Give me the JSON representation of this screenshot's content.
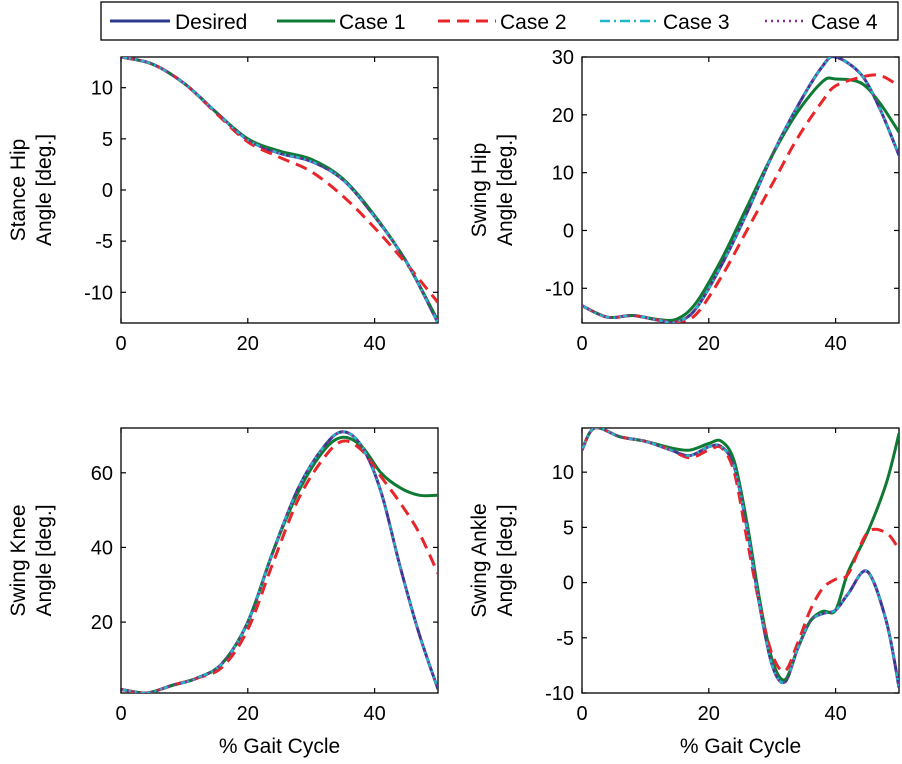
{
  "legend": {
    "entries": [
      {
        "name": "Desired",
        "color": "#2b3a8f",
        "dash": "solid",
        "width": 3
      },
      {
        "name": "Case 1",
        "color": "#0e7a33",
        "dash": "solid",
        "width": 3
      },
      {
        "name": "Case 2",
        "color": "#e8262a",
        "dash": "12 7",
        "width": 3
      },
      {
        "name": "Case 3",
        "color": "#20b7c9",
        "dash": "10 4 2 4",
        "width": 2.5
      },
      {
        "name": "Case 4",
        "color": "#8a2b9a",
        "dash": "2 4",
        "width": 2.5
      }
    ]
  },
  "chart_data": [
    {
      "type": "line",
      "id": "stance-hip",
      "ylabel": [
        "Stance Hip",
        "Angle [deg.]"
      ],
      "xlabel": "",
      "xlim": [
        0,
        50
      ],
      "ylim": [
        -13,
        13
      ],
      "xticks": [
        0,
        20,
        40
      ],
      "yticks": [
        -10,
        -5,
        0,
        5,
        10
      ],
      "x": [
        0,
        5,
        10,
        15,
        20,
        25,
        30,
        35,
        40,
        45,
        50
      ],
      "series": [
        {
          "name": "Desired",
          "values": [
            13,
            12.3,
            10.4,
            7.6,
            4.9,
            3.6,
            2.8,
            1.0,
            -2.6,
            -7.0,
            -13.0
          ]
        },
        {
          "name": "Case 1",
          "values": [
            13,
            12.3,
            10.4,
            7.6,
            5.0,
            3.8,
            3.0,
            1.1,
            -2.5,
            -7.0,
            -12.8
          ]
        },
        {
          "name": "Case 2",
          "values": [
            13,
            12.3,
            10.4,
            7.5,
            4.7,
            3.2,
            1.8,
            -0.6,
            -3.7,
            -7.2,
            -11.0
          ]
        },
        {
          "name": "Case 3",
          "values": [
            13,
            12.3,
            10.4,
            7.6,
            4.9,
            3.6,
            2.8,
            1.0,
            -2.6,
            -7.0,
            -13.0
          ]
        },
        {
          "name": "Case 4",
          "values": [
            13,
            12.3,
            10.4,
            7.6,
            4.9,
            3.6,
            2.8,
            1.0,
            -2.6,
            -7.0,
            -13.0
          ]
        }
      ]
    },
    {
      "type": "line",
      "id": "swing-hip",
      "ylabel": [
        "Swing Hip",
        "Angle [deg.]"
      ],
      "xlabel": "",
      "xlim": [
        0,
        50
      ],
      "ylim": [
        -16,
        30
      ],
      "xticks": [
        0,
        20,
        40
      ],
      "yticks": [
        -10,
        0,
        10,
        20,
        30
      ],
      "x": [
        0,
        4,
        8,
        12,
        15,
        18,
        22,
        26,
        30,
        34,
        38,
        40,
        44,
        47,
        50
      ],
      "series": [
        {
          "name": "Desired",
          "values": [
            -13,
            -15,
            -14.7,
            -15.5,
            -15.8,
            -13.5,
            -6,
            3,
            13,
            21.5,
            28.5,
            30,
            27,
            21,
            13
          ]
        },
        {
          "name": "Case 1",
          "values": [
            -13,
            -15,
            -14.7,
            -15.4,
            -15.3,
            -12.5,
            -5,
            4,
            13,
            20.5,
            25.8,
            26.2,
            25.5,
            22,
            17
          ]
        },
        {
          "name": "Case 2",
          "values": [
            -13,
            -15,
            -14.7,
            -15.5,
            -15.8,
            -14.5,
            -8,
            0,
            8,
            16,
            22.5,
            25,
            26.5,
            26.8,
            25
          ]
        },
        {
          "name": "Case 3",
          "values": [
            -13,
            -15,
            -14.7,
            -15.5,
            -15.8,
            -13.5,
            -6,
            3,
            13,
            21.5,
            28.5,
            30,
            27,
            21,
            13
          ]
        },
        {
          "name": "Case 4",
          "values": [
            -13,
            -15,
            -14.7,
            -15.5,
            -15.8,
            -13.5,
            -6,
            3,
            13,
            21.5,
            28.5,
            30,
            27,
            21,
            13
          ]
        }
      ]
    },
    {
      "type": "line",
      "id": "swing-knee",
      "ylabel": [
        "Swing Knee",
        "Angle [deg.]"
      ],
      "xlabel": "% Gait Cycle",
      "xlim": [
        0,
        50
      ],
      "ylim": [
        1,
        72
      ],
      "xticks": [
        0,
        20,
        40
      ],
      "yticks": [
        20,
        40,
        60
      ],
      "x": [
        0,
        4,
        8,
        12,
        16,
        20,
        24,
        28,
        32,
        35,
        38,
        41,
        44,
        47,
        50
      ],
      "series": [
        {
          "name": "Desired",
          "values": [
            2,
            1,
            3,
            5,
            9,
            20,
            39,
            56,
            67,
            71,
            67,
            55,
            35,
            17,
            2
          ]
        },
        {
          "name": "Case 1",
          "values": [
            2,
            1,
            3,
            5,
            9,
            20,
            39,
            55,
            66,
            69.5,
            67,
            60,
            56,
            54,
            54
          ]
        },
        {
          "name": "Case 2",
          "values": [
            2,
            1,
            3,
            5,
            8,
            18,
            36,
            53,
            64,
            68.5,
            66,
            59,
            52,
            44,
            33
          ]
        },
        {
          "name": "Case 3",
          "values": [
            2,
            1,
            3,
            5,
            9,
            20,
            39,
            56,
            67,
            71,
            67,
            55,
            35,
            17,
            2
          ]
        },
        {
          "name": "Case 4",
          "values": [
            2,
            1,
            3,
            5,
            9,
            20,
            39,
            56,
            67,
            71,
            67,
            55,
            35,
            17,
            2
          ]
        }
      ]
    },
    {
      "type": "line",
      "id": "swing-ankle",
      "ylabel": [
        "Swing Ankle",
        "Angle [deg.]"
      ],
      "xlabel": "% Gait Cycle",
      "xlim": [
        0,
        50
      ],
      "ylim": [
        -10,
        14
      ],
      "xticks": [
        0,
        20,
        40
      ],
      "yticks": [
        -10,
        -5,
        0,
        5,
        10
      ],
      "x": [
        0,
        2,
        6,
        10,
        14,
        17,
        20,
        22,
        24,
        26,
        28,
        30,
        32,
        34,
        36,
        38,
        40,
        42,
        45,
        48,
        50
      ],
      "series": [
        {
          "name": "Desired",
          "values": [
            12,
            14,
            13.2,
            12.8,
            12.0,
            11.5,
            12.3,
            12.3,
            10.5,
            5,
            -2,
            -7.5,
            -9,
            -6,
            -3.5,
            -2.8,
            -2.5,
            -1.0,
            1.0,
            -3.5,
            -9.5
          ]
        },
        {
          "name": "Case 1",
          "values": [
            12,
            14,
            13.2,
            12.8,
            12.2,
            12.0,
            12.6,
            12.8,
            11.0,
            5.5,
            -1.5,
            -7,
            -8.8,
            -6,
            -3.5,
            -2.6,
            -2.5,
            1.0,
            4.5,
            9.0,
            13.5
          ]
        },
        {
          "name": "Case 2",
          "values": [
            12,
            14,
            13.2,
            12.8,
            12.0,
            11.3,
            12.0,
            12.2,
            10.0,
            4,
            -2,
            -6.5,
            -8,
            -5.5,
            -2.5,
            -0.5,
            0.3,
            0.8,
            4.5,
            4.5,
            3.0
          ]
        },
        {
          "name": "Case 3",
          "values": [
            12,
            14,
            13.2,
            12.8,
            12.0,
            11.5,
            12.3,
            12.3,
            10.5,
            5,
            -2,
            -7.5,
            -9,
            -6,
            -3.5,
            -2.8,
            -2.5,
            -1.0,
            1.0,
            -3.5,
            -9.5
          ]
        },
        {
          "name": "Case 4",
          "values": [
            12,
            14,
            13.2,
            12.8,
            12.0,
            11.5,
            12.3,
            12.3,
            10.5,
            5,
            -2,
            -7.5,
            -9,
            -6,
            -3.5,
            -2.8,
            -2.5,
            -1.0,
            1.0,
            -3.5,
            -9.5
          ]
        }
      ]
    }
  ]
}
